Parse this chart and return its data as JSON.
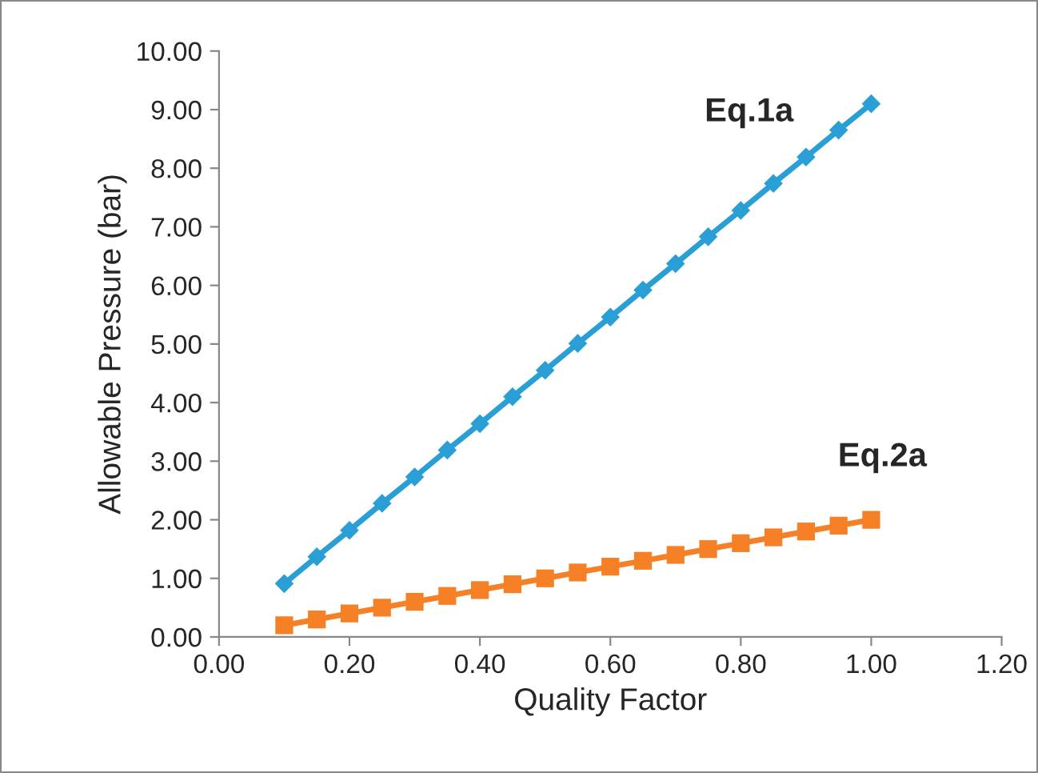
{
  "chart_data": {
    "type": "line",
    "xlabel": "Quality Factor",
    "ylabel": "Allowable Pressure (bar)",
    "xlim": [
      0,
      1.2
    ],
    "ylim": [
      0,
      10
    ],
    "xticks": [
      {
        "value": 0,
        "label": "0.00"
      },
      {
        "value": 0.2,
        "label": "0.20"
      },
      {
        "value": 0.4,
        "label": "0.40"
      },
      {
        "value": 0.6,
        "label": "0.60"
      },
      {
        "value": 0.8,
        "label": "0.80"
      },
      {
        "value": 1.0,
        "label": "1.00"
      },
      {
        "value": 1.2,
        "label": "1.20"
      }
    ],
    "yticks": [
      {
        "value": 0,
        "label": "0.00"
      },
      {
        "value": 1,
        "label": "1.00"
      },
      {
        "value": 2,
        "label": "2.00"
      },
      {
        "value": 3,
        "label": "3.00"
      },
      {
        "value": 4,
        "label": "4.00"
      },
      {
        "value": 5,
        "label": "5.00"
      },
      {
        "value": 6,
        "label": "6.00"
      },
      {
        "value": 7,
        "label": "7.00"
      },
      {
        "value": 8,
        "label": "8.00"
      },
      {
        "value": 9,
        "label": "9.00"
      },
      {
        "value": 10,
        "label": "10.00"
      }
    ],
    "x": [
      0.1,
      0.15,
      0.2,
      0.25,
      0.3,
      0.35,
      0.4,
      0.45,
      0.5,
      0.55,
      0.6,
      0.65,
      0.7,
      0.75,
      0.8,
      0.85,
      0.9,
      0.95,
      1.0
    ],
    "series": [
      {
        "name": "Eq.1a",
        "color": "#2a9fd6",
        "marker": "diamond",
        "values": [
          0.91,
          1.37,
          1.82,
          2.28,
          2.73,
          3.19,
          3.64,
          4.1,
          4.55,
          5.01,
          5.46,
          5.92,
          6.37,
          6.83,
          7.28,
          7.74,
          8.19,
          8.65,
          9.1
        ]
      },
      {
        "name": "Eq.2a",
        "color": "#f58025",
        "marker": "square",
        "values": [
          0.2,
          0.3,
          0.4,
          0.5,
          0.6,
          0.7,
          0.8,
          0.9,
          1.0,
          1.1,
          1.2,
          1.3,
          1.4,
          1.5,
          1.6,
          1.7,
          1.8,
          1.9,
          2.0
        ]
      }
    ],
    "grid": false,
    "legend": false,
    "line_style": "solid"
  }
}
